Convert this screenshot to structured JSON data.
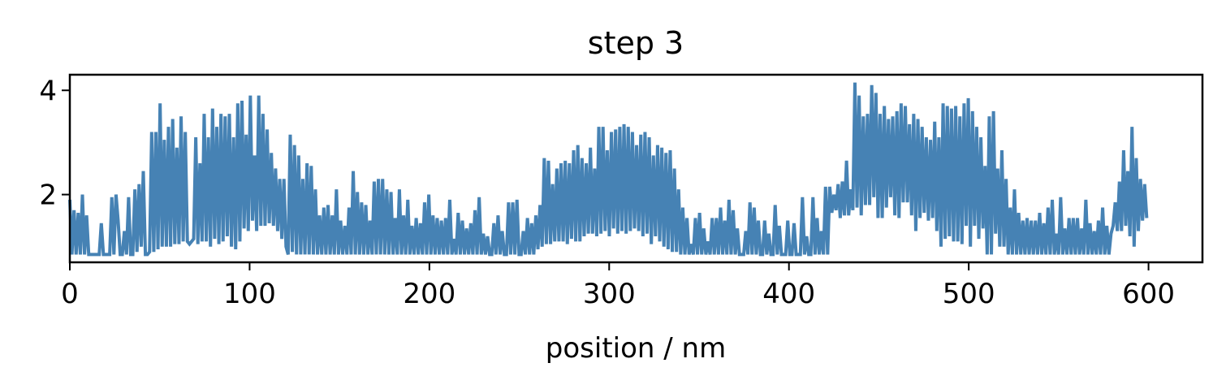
{
  "chart_data": {
    "type": "line",
    "title": "step 3",
    "xlabel": "position / nm",
    "ylabel": "",
    "xlim": [
      0,
      630
    ],
    "ylim": [
      0.7,
      4.3
    ],
    "xticks": [
      0,
      100,
      200,
      300,
      400,
      500,
      600
    ],
    "xtick_labels": [
      "0",
      "100",
      "200",
      "300",
      "400",
      "500",
      "600"
    ],
    "yticks": [
      2,
      4
    ],
    "ytick_labels": [
      "2",
      "4"
    ],
    "grid": false,
    "legend": "none",
    "series": [
      {
        "color": "#4682b4",
        "note_x_step": 1,
        "x_start": 0,
        "x_end": 599,
        "values": [
          1.9,
          0.85,
          1.7,
          0.85,
          1.65,
          0.85,
          2.0,
          0.85,
          1.6,
          0.85,
          0.85,
          0.85,
          0.85,
          0.85,
          0.85,
          1.45,
          0.85,
          0.85,
          0.85,
          0.85,
          1.95,
          0.85,
          2.0,
          1.5,
          0.85,
          0.85,
          1.3,
          0.85,
          1.95,
          0.85,
          0.85,
          2.1,
          0.9,
          2.2,
          1.0,
          2.45,
          0.85,
          0.85,
          0.9,
          3.2,
          0.9,
          3.2,
          0.95,
          3.75,
          1.0,
          3.05,
          1.0,
          3.3,
          1.0,
          3.45,
          1.05,
          2.9,
          1.05,
          3.5,
          1.1,
          3.2,
          1.1,
          1.05,
          1.1,
          1.15,
          3.1,
          1.05,
          2.6,
          1.1,
          3.55,
          1.1,
          3.1,
          1.0,
          3.65,
          1.15,
          3.3,
          1.05,
          3.55,
          1.1,
          3.5,
          1.2,
          3.55,
          1.0,
          3.1,
          0.95,
          3.75,
          1.1,
          3.8,
          1.35,
          3.15,
          1.3,
          3.9,
          1.5,
          2.75,
          1.3,
          3.9,
          1.4,
          3.55,
          1.4,
          3.25,
          1.45,
          2.8,
          1.4,
          2.5,
          1.3,
          2.3,
          1.15,
          2.3,
          1.0,
          0.85,
          3.15,
          0.9,
          2.95,
          0.85,
          2.75,
          0.85,
          2.3,
          0.85,
          2.6,
          0.85,
          2.55,
          0.85,
          2.1,
          0.85,
          1.6,
          0.85,
          1.75,
          0.85,
          1.8,
          0.85,
          1.6,
          0.85,
          2.1,
          0.85,
          1.5,
          0.85,
          1.4,
          0.85,
          1.75,
          0.85,
          2.45,
          0.85,
          2.05,
          0.85,
          1.85,
          0.85,
          1.8,
          0.85,
          1.5,
          0.85,
          2.25,
          0.85,
          2.3,
          0.85,
          2.3,
          0.85,
          2.1,
          0.85,
          2.05,
          0.85,
          1.55,
          0.85,
          2.1,
          0.85,
          1.6,
          0.85,
          1.9,
          0.85,
          1.4,
          0.85,
          1.55,
          0.85,
          1.45,
          0.85,
          1.85,
          0.85,
          2.0,
          0.85,
          1.6,
          0.85,
          1.55,
          0.85,
          1.5,
          0.85,
          1.55,
          0.85,
          1.9,
          0.85,
          1.15,
          0.85,
          1.65,
          0.85,
          1.5,
          0.85,
          1.35,
          0.85,
          1.45,
          0.85,
          1.7,
          0.85,
          1.95,
          0.85,
          1.25,
          0.85,
          1.2,
          0.85,
          0.85,
          1.45,
          0.85,
          1.6,
          0.85,
          1.3,
          0.85,
          0.85,
          1.85,
          0.85,
          1.85,
          0.85,
          1.9,
          0.85,
          0.85,
          1.3,
          0.85,
          1.55,
          0.85,
          1.45,
          0.85,
          1.6,
          0.95,
          1.8,
          1.0,
          2.7,
          1.05,
          2.65,
          1.05,
          2.2,
          1.1,
          2.5,
          1.1,
          2.6,
          1.1,
          2.65,
          1.05,
          2.6,
          1.15,
          2.85,
          1.1,
          2.95,
          1.1,
          2.7,
          1.2,
          2.6,
          1.25,
          2.9,
          1.25,
          2.5,
          1.2,
          3.3,
          1.25,
          3.3,
          1.3,
          2.85,
          1.2,
          3.2,
          1.35,
          3.25,
          1.25,
          3.3,
          1.3,
          3.35,
          1.25,
          3.3,
          1.3,
          3.2,
          1.35,
          2.95,
          1.3,
          3.15,
          1.2,
          3.2,
          1.25,
          3.1,
          1.05,
          2.75,
          1.2,
          2.95,
          1.1,
          2.9,
          1.0,
          2.8,
          0.95,
          2.85,
          0.9,
          2.5,
          0.9,
          2.1,
          0.85,
          1.75,
          0.85,
          1.55,
          0.85,
          1.05,
          0.85,
          1.55,
          0.85,
          1.65,
          0.85,
          1.35,
          0.85,
          1.1,
          0.85,
          1.55,
          0.85,
          1.55,
          0.85,
          1.75,
          0.85,
          1.5,
          0.85,
          1.9,
          0.85,
          1.7,
          0.85,
          1.35,
          0.85,
          0.85,
          0.85,
          1.3,
          0.85,
          1.85,
          0.85,
          1.75,
          0.85,
          1.5,
          0.85,
          0.85,
          1.5,
          0.85,
          1.25,
          0.85,
          0.85,
          1.8,
          0.85,
          1.4,
          0.85,
          0.85,
          0.85,
          1.5,
          0.85,
          0.85,
          1.45,
          0.85,
          0.85,
          0.85,
          1.95,
          0.85,
          1.2,
          0.85,
          0.85,
          1.95,
          0.85,
          1.55,
          0.85,
          1.3,
          0.85,
          2.15,
          0.85,
          2.15,
          1.65,
          2.0,
          1.7,
          2.2,
          1.55,
          2.25,
          1.6,
          2.65,
          1.6,
          2.1,
          1.7,
          4.15,
          1.75,
          3.9,
          1.6,
          3.5,
          1.8,
          3.55,
          1.8,
          4.1,
          1.95,
          3.95,
          1.55,
          3.55,
          1.55,
          3.7,
          1.75,
          3.45,
          1.95,
          3.5,
          1.6,
          3.6,
          1.55,
          3.75,
          1.85,
          3.7,
          1.85,
          3.35,
          1.6,
          3.55,
          1.3,
          3.45,
          1.55,
          3.3,
          1.65,
          3.1,
          1.5,
          3.05,
          1.55,
          3.4,
          1.3,
          3.1,
          1.0,
          3.75,
          1.15,
          3.7,
          1.2,
          3.65,
          1.1,
          3.7,
          1.1,
          3.5,
          1.05,
          3.75,
          1.4,
          3.85,
          1.0,
          3.6,
          1.4,
          3.3,
          1.15,
          3.1,
          1.35,
          2.55,
          0.85,
          3.5,
          0.85,
          3.6,
          1.25,
          2.5,
          1.0,
          2.85,
          1.0,
          2.3,
          0.85,
          1.75,
          0.85,
          2.1,
          0.85,
          1.65,
          0.85,
          1.5,
          0.85,
          1.55,
          0.85,
          1.5,
          0.85,
          1.5,
          0.85,
          1.65,
          0.85,
          1.45,
          0.85,
          1.75,
          0.85,
          1.9,
          0.85,
          1.25,
          0.85,
          1.95,
          0.85,
          1.35,
          0.85,
          1.55,
          0.85,
          1.55,
          0.85,
          1.55,
          0.85,
          1.35,
          0.85,
          1.9,
          0.85,
          1.45,
          0.85,
          1.3,
          0.85,
          1.5,
          0.85,
          1.75,
          0.85,
          1.4,
          0.85,
          1.25,
          1.4,
          1.85,
          1.3,
          2.25,
          1.3,
          2.85,
          1.4,
          2.45,
          1.2,
          3.3,
          1.0,
          2.7,
          1.3,
          2.3,
          1.5,
          2.2,
          1.55
        ]
      }
    ]
  }
}
